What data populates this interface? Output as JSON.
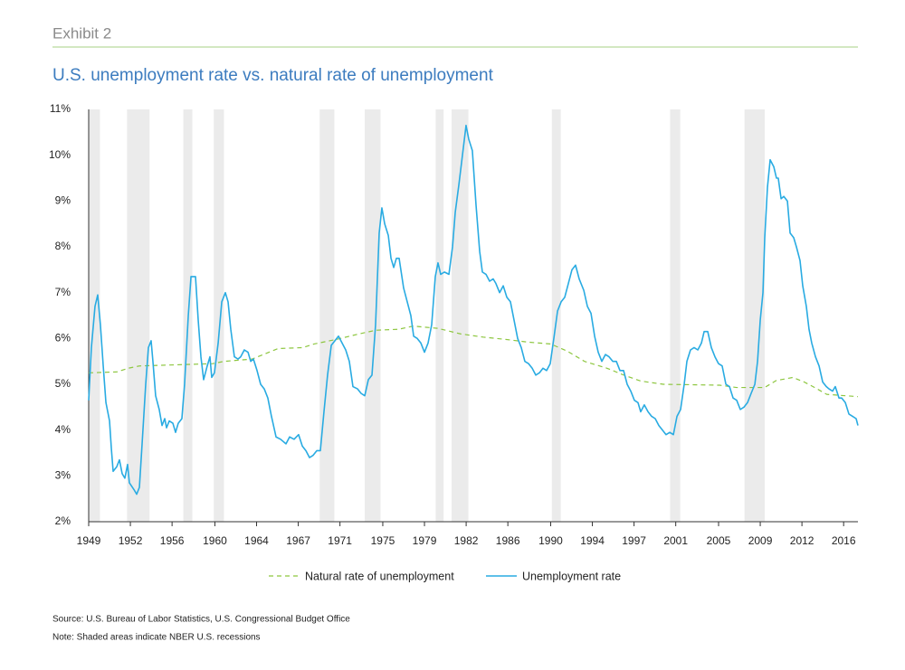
{
  "chart_data": {
    "type": "line",
    "exhibit": "Exhibit 2",
    "title": "U.S. unemployment rate vs. natural rate of unemployment",
    "source": "Source: U.S. Bureau of Labor Statistics, U.S. Congressional Budget Office",
    "note": "Note: Shaded areas indicate NBER U.S. recessions",
    "xlim": [
      1949,
      2017.27
    ],
    "ylim": [
      2,
      11
    ],
    "yticks": [
      {
        "value": 2,
        "label": "2%"
      },
      {
        "value": 3,
        "label": "3%"
      },
      {
        "value": 4,
        "label": "4%"
      },
      {
        "value": 5,
        "label": "5%"
      },
      {
        "value": 6,
        "label": "6%"
      },
      {
        "value": 7,
        "label": "7%"
      },
      {
        "value": 8,
        "label": "8%"
      },
      {
        "value": 9,
        "label": "9%"
      },
      {
        "value": 10,
        "label": "10%"
      },
      {
        "value": 11,
        "label": "11%"
      }
    ],
    "xticks": [
      1949,
      {
        "value": 1952.7,
        "label": "1952"
      },
      {
        "value": 1956.4,
        "label": "1956"
      },
      {
        "value": 1960.2,
        "label": "1960"
      },
      {
        "value": 1963.9,
        "label": "1964"
      },
      {
        "value": 1967.6,
        "label": "1967"
      },
      {
        "value": 1971.3,
        "label": "1971"
      },
      {
        "value": 1975.1,
        "label": "1975"
      },
      {
        "value": 1978.8,
        "label": "1979"
      },
      {
        "value": 1982.5,
        "label": "1982"
      },
      {
        "value": 1986.2,
        "label": "1986"
      },
      1990,
      {
        "value": 1993.7,
        "label": "1994"
      },
      {
        "value": 1997.4,
        "label": "1997"
      },
      {
        "value": 2001.1,
        "label": "2001"
      },
      {
        "value": 2004.9,
        "label": "2005"
      },
      {
        "value": 2008.6,
        "label": "2009"
      },
      {
        "value": 2012.3,
        "label": "2012"
      },
      2016
    ],
    "recessions": [
      [
        1949.0,
        1950.0
      ],
      [
        1952.4,
        1954.4
      ],
      [
        1957.4,
        1958.2
      ],
      [
        1960.1,
        1961.0
      ],
      [
        1969.5,
        1970.8
      ],
      [
        1973.5,
        1974.9
      ],
      [
        1979.8,
        1980.5
      ],
      [
        1981.2,
        1982.7
      ],
      [
        1990.1,
        1990.9
      ],
      [
        2000.6,
        2001.5
      ],
      [
        2007.2,
        2009.0
      ]
    ],
    "recession_color": "#ebebeb",
    "series": [
      {
        "name": "Natural rate of unemployment",
        "color": "#8dc63f",
        "style": "dashed",
        "x": [
          1949,
          1951.5,
          1952.5,
          1953.5,
          1960,
          1961,
          1963.5,
          1964.5,
          1965.8,
          1968,
          1969,
          1971,
          1973,
          1974.5,
          1976.5,
          1977.8,
          1980,
          1982,
          1984,
          1986,
          1988,
          1990,
          1991.5,
          1993,
          1995,
          1996.5,
          1998,
          2000,
          2005,
          2006.5,
          2009,
          2010,
          2011.5,
          2012.5,
          2013.5,
          2014.5,
          2017.27
        ],
        "values": [
          5.25,
          5.27,
          5.35,
          5.4,
          5.45,
          5.5,
          5.55,
          5.65,
          5.78,
          5.8,
          5.88,
          5.98,
          6.1,
          6.18,
          6.2,
          6.27,
          6.22,
          6.1,
          6.03,
          5.98,
          5.92,
          5.88,
          5.72,
          5.5,
          5.35,
          5.2,
          5.07,
          5.0,
          4.98,
          4.93,
          4.93,
          5.08,
          5.15,
          5.05,
          4.92,
          4.78,
          4.73
        ]
      },
      {
        "name": "Unemployment rate",
        "color": "#29abe2",
        "style": "solid",
        "x": [
          1949.0,
          1949.24,
          1949.56,
          1949.8,
          1950.04,
          1950.29,
          1950.53,
          1950.85,
          1951.01,
          1951.17,
          1951.49,
          1951.73,
          1951.97,
          1952.21,
          1952.45,
          1952.61,
          1953.02,
          1953.26,
          1953.5,
          1953.74,
          1954.06,
          1954.3,
          1954.54,
          1954.7,
          1954.94,
          1955.26,
          1955.51,
          1955.75,
          1955.91,
          1956.15,
          1956.47,
          1956.71,
          1956.95,
          1957.27,
          1957.51,
          1957.84,
          1958.08,
          1958.48,
          1958.72,
          1958.96,
          1959.2,
          1959.52,
          1959.76,
          1959.92,
          1960.16,
          1960.49,
          1960.81,
          1961.13,
          1961.37,
          1961.61,
          1961.93,
          1962.25,
          1962.49,
          1962.81,
          1963.14,
          1963.38,
          1963.62,
          1963.94,
          1964.26,
          1964.58,
          1964.9,
          1965.22,
          1965.63,
          1966.03,
          1966.51,
          1966.83,
          1967.23,
          1967.63,
          1967.96,
          1968.28,
          1968.6,
          1968.92,
          1969.24,
          1969.56,
          1969.88,
          1970.2,
          1970.53,
          1970.85,
          1971.17,
          1971.49,
          1971.81,
          1972.13,
          1972.45,
          1972.86,
          1973.18,
          1973.5,
          1973.82,
          1974.14,
          1974.46,
          1974.78,
          1975.02,
          1975.27,
          1975.59,
          1975.83,
          1976.07,
          1976.31,
          1976.55,
          1976.95,
          1977.27,
          1977.59,
          1977.84,
          1978.16,
          1978.48,
          1978.8,
          1979.12,
          1979.44,
          1979.76,
          1980.0,
          1980.24,
          1980.57,
          1980.97,
          1981.29,
          1981.53,
          1981.85,
          1982.17,
          1982.49,
          1982.73,
          1983.05,
          1983.38,
          1983.7,
          1983.94,
          1984.26,
          1984.58,
          1984.9,
          1985.14,
          1985.47,
          1985.79,
          1986.11,
          1986.43,
          1986.75,
          1987.07,
          1987.39,
          1987.71,
          1988.04,
          1988.36,
          1988.68,
          1989.0,
          1989.32,
          1989.64,
          1989.96,
          1990.28,
          1990.61,
          1990.93,
          1991.25,
          1991.57,
          1991.89,
          1992.21,
          1992.53,
          1992.94,
          1993.26,
          1993.58,
          1993.9,
          1994.22,
          1994.54,
          1994.86,
          1995.18,
          1995.51,
          1995.83,
          1996.15,
          1996.47,
          1996.79,
          1997.11,
          1997.43,
          1997.75,
          1997.99,
          1998.31,
          1998.64,
          1998.96,
          1999.28,
          1999.6,
          1999.92,
          2000.24,
          2000.57,
          2000.89,
          2001.21,
          2001.53,
          2001.85,
          2002.09,
          2002.41,
          2002.73,
          2003.06,
          2003.38,
          2003.62,
          2003.94,
          2004.26,
          2004.58,
          2004.9,
          2005.22,
          2005.55,
          2005.87,
          2006.19,
          2006.51,
          2006.83,
          2007.15,
          2007.47,
          2007.79,
          2008.12,
          2008.36,
          2008.6,
          2008.84,
          2009.0,
          2009.24,
          2009.48,
          2009.8,
          2010.04,
          2010.2,
          2010.45,
          2010.69,
          2011.01,
          2011.25,
          2011.57,
          2011.81,
          2012.13,
          2012.37,
          2012.69,
          2012.93,
          2013.17,
          2013.5,
          2013.82,
          2014.14,
          2014.46,
          2014.7,
          2015.02,
          2015.26,
          2015.59,
          2015.83,
          2016.15,
          2016.47,
          2016.79,
          2017.11,
          2017.27
        ],
        "values": [
          4.65,
          5.8,
          6.7,
          6.95,
          6.3,
          5.4,
          4.6,
          4.2,
          3.6,
          3.1,
          3.2,
          3.35,
          3.05,
          2.95,
          3.25,
          2.85,
          2.7,
          2.6,
          2.75,
          3.7,
          5.0,
          5.8,
          5.95,
          5.5,
          4.75,
          4.45,
          4.1,
          4.25,
          4.05,
          4.2,
          4.15,
          3.95,
          4.15,
          4.25,
          5.0,
          6.5,
          7.35,
          7.35,
          6.4,
          5.6,
          5.1,
          5.4,
          5.6,
          5.15,
          5.25,
          5.9,
          6.8,
          7.0,
          6.8,
          6.2,
          5.6,
          5.55,
          5.6,
          5.75,
          5.7,
          5.5,
          5.55,
          5.3,
          5.0,
          4.9,
          4.7,
          4.3,
          3.85,
          3.8,
          3.7,
          3.85,
          3.8,
          3.9,
          3.65,
          3.55,
          3.4,
          3.45,
          3.55,
          3.55,
          4.4,
          5.2,
          5.85,
          5.95,
          6.05,
          5.9,
          5.75,
          5.5,
          4.95,
          4.9,
          4.8,
          4.75,
          5.1,
          5.2,
          6.3,
          8.3,
          8.85,
          8.5,
          8.25,
          7.75,
          7.55,
          7.75,
          7.75,
          7.1,
          6.8,
          6.5,
          6.05,
          6.0,
          5.9,
          5.7,
          5.9,
          6.3,
          7.35,
          7.65,
          7.4,
          7.45,
          7.4,
          8.0,
          8.75,
          9.35,
          10.0,
          10.65,
          10.35,
          10.1,
          8.9,
          7.9,
          7.45,
          7.4,
          7.25,
          7.3,
          7.2,
          7.0,
          7.15,
          6.9,
          6.8,
          6.4,
          6.0,
          5.8,
          5.5,
          5.45,
          5.35,
          5.2,
          5.25,
          5.35,
          5.3,
          5.45,
          6.0,
          6.6,
          6.8,
          6.9,
          7.2,
          7.5,
          7.6,
          7.3,
          7.05,
          6.7,
          6.55,
          6.05,
          5.7,
          5.5,
          5.65,
          5.6,
          5.5,
          5.5,
          5.3,
          5.3,
          5.0,
          4.85,
          4.65,
          4.6,
          4.4,
          4.55,
          4.4,
          4.3,
          4.25,
          4.1,
          4.0,
          3.9,
          3.95,
          3.9,
          4.3,
          4.45,
          5.0,
          5.5,
          5.75,
          5.8,
          5.75,
          5.9,
          6.15,
          6.15,
          5.8,
          5.6,
          5.45,
          5.4,
          5.0,
          4.95,
          4.7,
          4.65,
          4.45,
          4.5,
          4.6,
          4.8,
          5.0,
          5.5,
          6.4,
          7.0,
          8.2,
          9.3,
          9.9,
          9.75,
          9.5,
          9.5,
          9.05,
          9.1,
          9.0,
          8.3,
          8.2,
          8.0,
          7.7,
          7.15,
          6.7,
          6.2,
          5.9,
          5.6,
          5.4,
          5.05,
          4.95,
          4.9,
          4.85,
          4.95,
          4.7,
          4.7,
          4.6,
          4.35,
          4.3,
          4.25,
          4.1
        ]
      }
    ]
  }
}
